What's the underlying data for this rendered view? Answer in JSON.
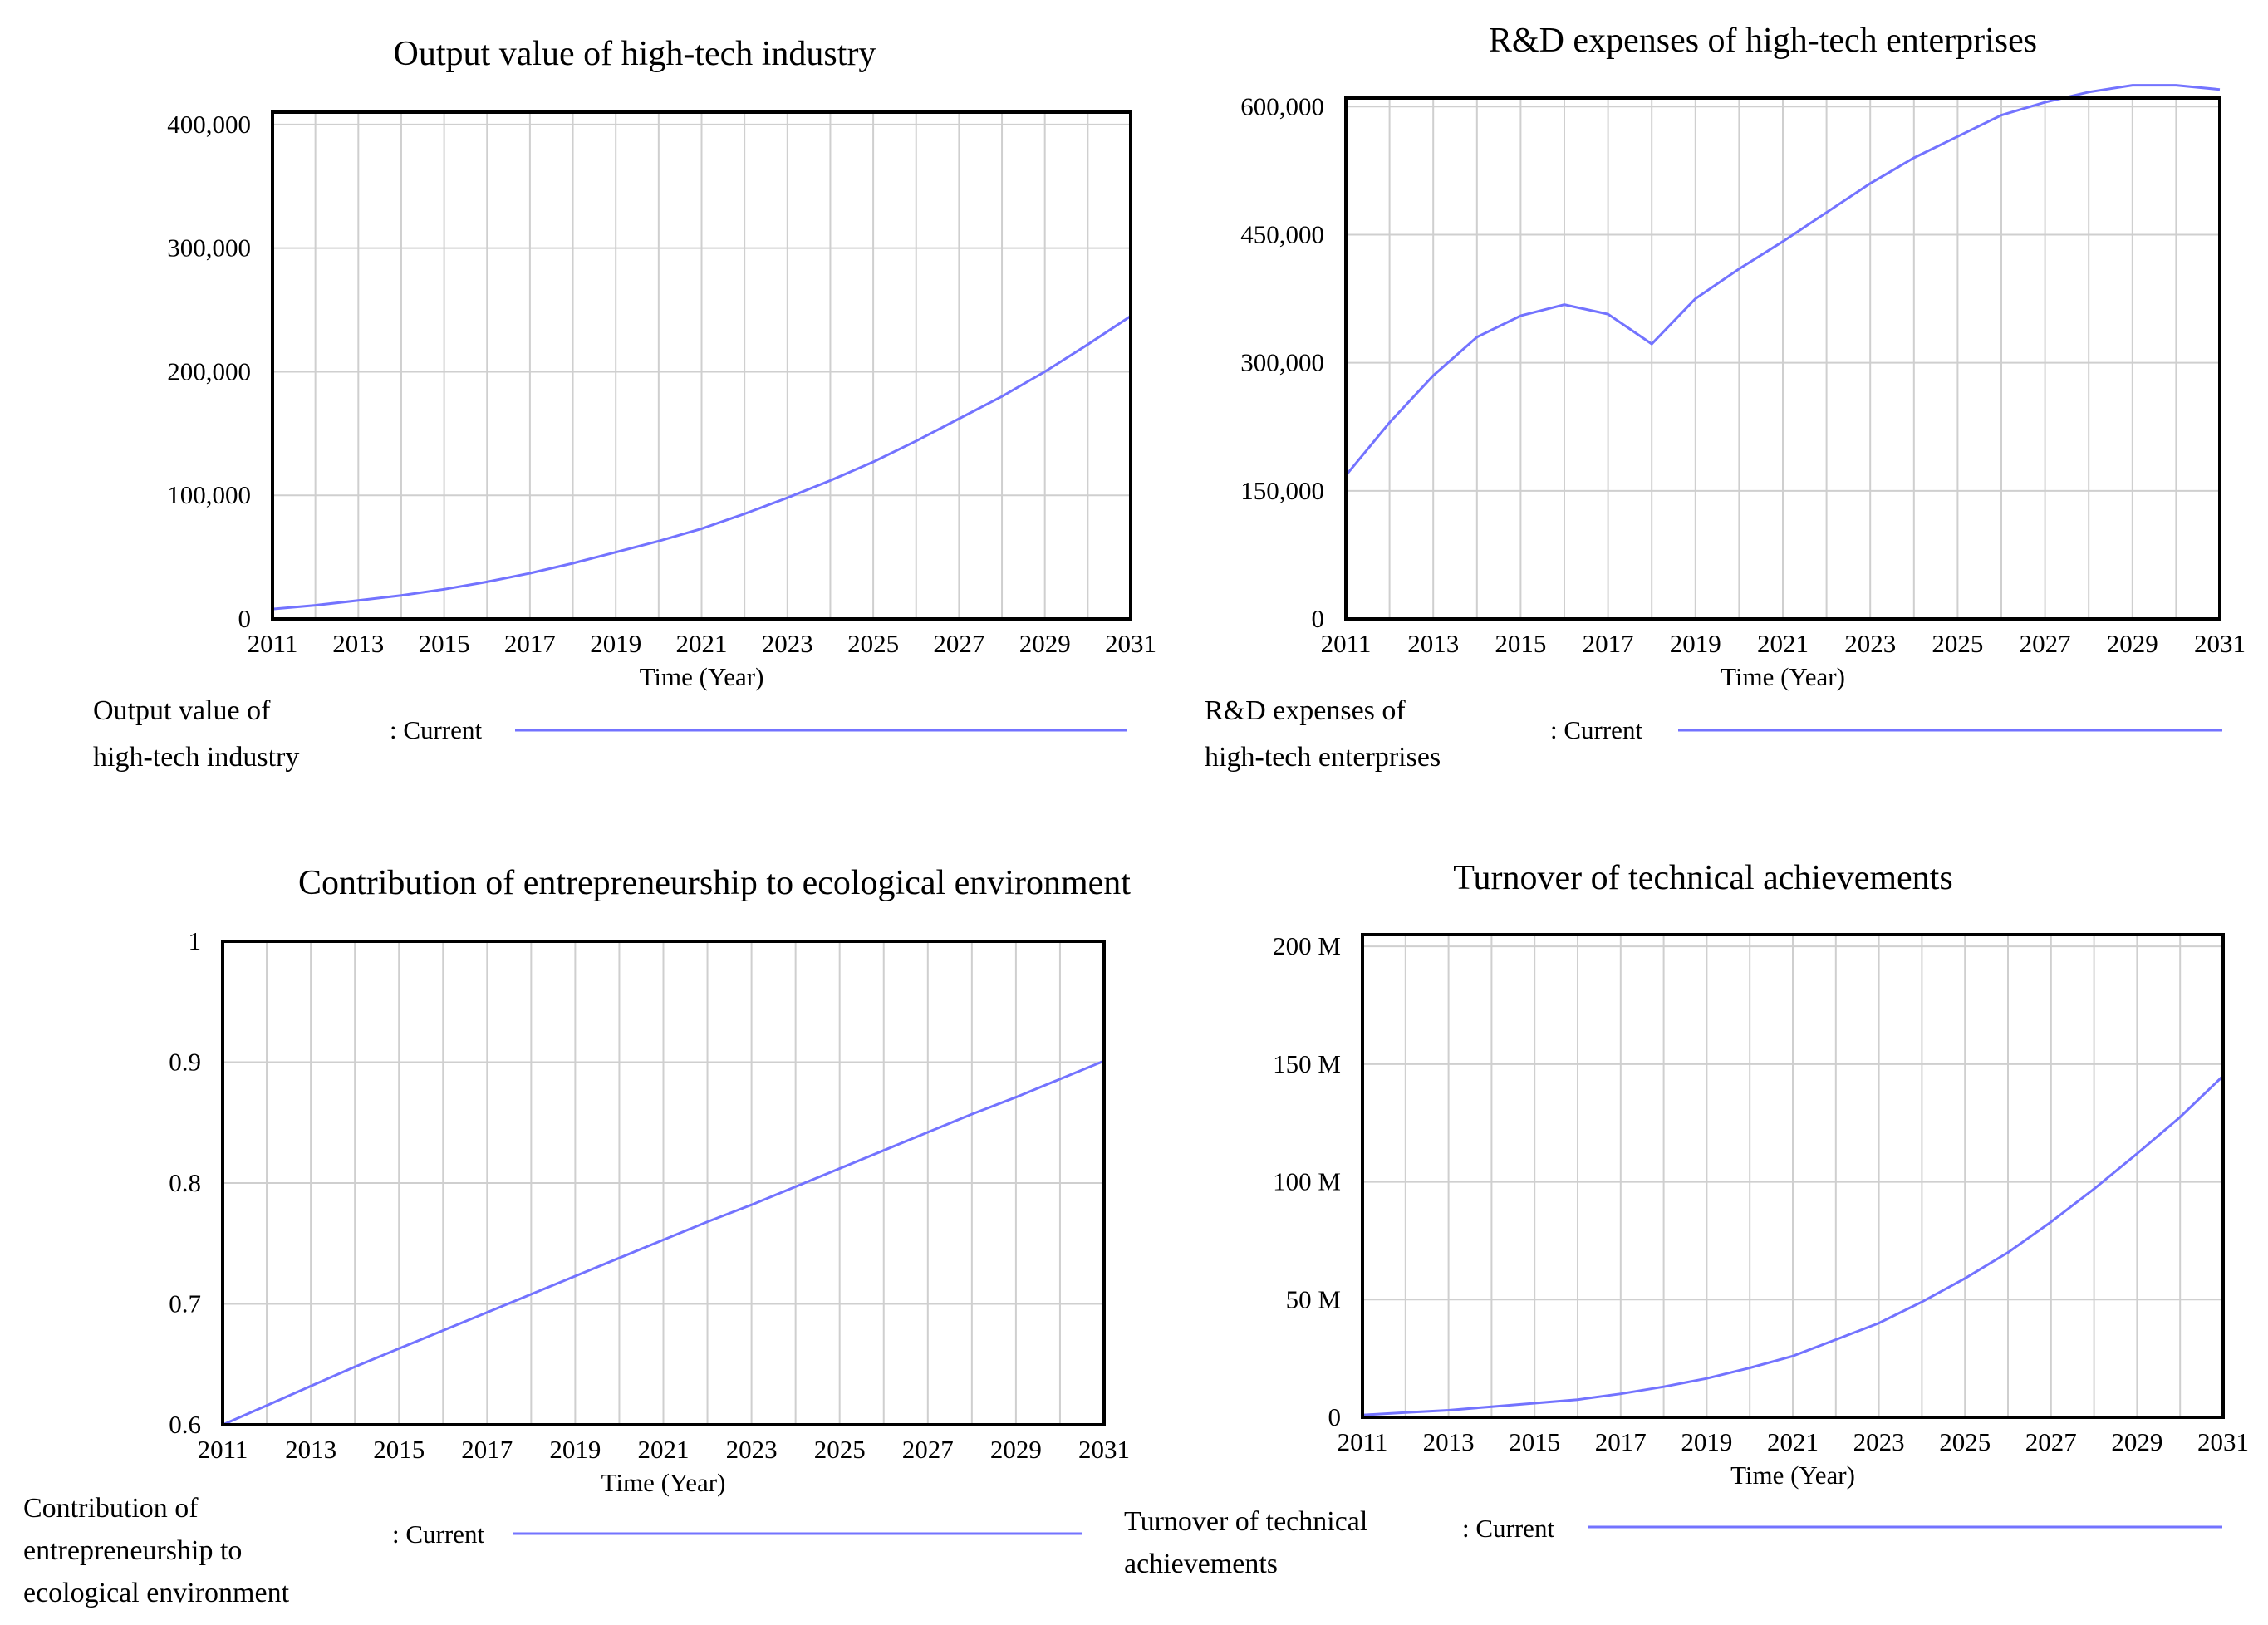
{
  "colors": {
    "series": "#7373ff",
    "grid": "#cfcfcf",
    "frame": "#000000",
    "background": "#ffffff"
  },
  "chart_data": [
    {
      "type": "line",
      "title": "Output value of high-tech industry",
      "xlabel": "Time (Year)",
      "ylabel": "",
      "x": [
        2011,
        2012,
        2013,
        2014,
        2015,
        2016,
        2017,
        2018,
        2019,
        2020,
        2021,
        2022,
        2023,
        2024,
        2025,
        2026,
        2027,
        2028,
        2029,
        2030,
        2031
      ],
      "xticks": [
        "2011",
        "2013",
        "2015",
        "2017",
        "2019",
        "2021",
        "2023",
        "2025",
        "2027",
        "2029",
        "2031"
      ],
      "ylim": [
        0,
        410000
      ],
      "yticks": [
        0,
        100000,
        200000,
        300000,
        400000
      ],
      "ytick_labels": [
        "0",
        "100,000",
        "200,000",
        "300,000",
        "400,000"
      ],
      "series": [
        {
          "name": "Current",
          "values": [
            8000,
            11000,
            15000,
            19000,
            24000,
            30000,
            37000,
            45000,
            54000,
            63000,
            73000,
            85000,
            98000,
            112000,
            127000,
            144000,
            162000,
            180000,
            200000,
            222000,
            245000
          ]
        }
      ],
      "legend": {
        "label_lines": [
          "Output value of",
          "high-tech industry"
        ],
        "sep": ": Current"
      }
    },
    {
      "type": "line",
      "title": "R&D expenses of high-tech enterprises",
      "xlabel": "Time (Year)",
      "ylabel": "",
      "x": [
        2011,
        2012,
        2013,
        2014,
        2015,
        2016,
        2017,
        2018,
        2019,
        2020,
        2021,
        2022,
        2023,
        2024,
        2025,
        2026,
        2027,
        2028,
        2029,
        2030,
        2031
      ],
      "xticks": [
        "2011",
        "2013",
        "2015",
        "2017",
        "2019",
        "2021",
        "2023",
        "2025",
        "2027",
        "2029",
        "2031"
      ],
      "ylim": [
        0,
        610000
      ],
      "yticks": [
        0,
        150000,
        300000,
        450000,
        600000
      ],
      "ytick_labels": [
        "0",
        "150,000",
        "300,000",
        "450,000",
        "600,000"
      ],
      "series": [
        {
          "name": "Current",
          "values": [
            168000,
            230000,
            285000,
            330000,
            355000,
            368000,
            357000,
            322000,
            375000,
            410000,
            442000,
            476000,
            510000,
            540000,
            565000,
            590000,
            605000,
            617000,
            625000,
            625000,
            620000
          ]
        }
      ],
      "legend": {
        "label_lines": [
          "R&D expenses of",
          "high-tech enterprises"
        ],
        "sep": ": Current"
      }
    },
    {
      "type": "line",
      "title": "Contribution of entrepreneurship to ecological environment",
      "xlabel": "Time (Year)",
      "ylabel": "",
      "x": [
        2011,
        2012,
        2013,
        2014,
        2015,
        2016,
        2017,
        2018,
        2019,
        2020,
        2021,
        2022,
        2023,
        2024,
        2025,
        2026,
        2027,
        2028,
        2029,
        2030,
        2031
      ],
      "xticks": [
        "2011",
        "2013",
        "2015",
        "2017",
        "2019",
        "2021",
        "2023",
        "2025",
        "2027",
        "2029",
        "2031"
      ],
      "ylim": [
        0.6,
        1.0
      ],
      "yticks": [
        0.6,
        0.7,
        0.8,
        0.9,
        1.0
      ],
      "ytick_labels": [
        "0.6",
        "0.7",
        "0.8",
        "0.9",
        "1"
      ],
      "series": [
        {
          "name": "Current",
          "values": [
            0.6,
            0.616,
            0.632,
            0.648,
            0.663,
            0.678,
            0.693,
            0.708,
            0.723,
            0.738,
            0.753,
            0.768,
            0.782,
            0.797,
            0.812,
            0.827,
            0.842,
            0.857,
            0.871,
            0.886,
            0.901
          ]
        }
      ],
      "legend": {
        "label_lines": [
          "Contribution of",
          "entrepreneurship to",
          "ecological environment"
        ],
        "sep": ": Current"
      }
    },
    {
      "type": "line",
      "title": "Turnover of technical achievements",
      "xlabel": "Time (Year)",
      "ylabel": "",
      "x": [
        2011,
        2012,
        2013,
        2014,
        2015,
        2016,
        2017,
        2018,
        2019,
        2020,
        2021,
        2022,
        2023,
        2024,
        2025,
        2026,
        2027,
        2028,
        2029,
        2030,
        2031
      ],
      "xticks": [
        "2011",
        "2013",
        "2015",
        "2017",
        "2019",
        "2021",
        "2023",
        "2025",
        "2027",
        "2029",
        "2031"
      ],
      "ylim": [
        0,
        205000000
      ],
      "yticks": [
        0,
        50000000,
        100000000,
        150000000,
        200000000
      ],
      "ytick_labels": [
        "0",
        "50 M",
        "100 M",
        "150 M",
        "200 M"
      ],
      "series": [
        {
          "name": "Current",
          "values": [
            1000000,
            2000000,
            3000000,
            4500000,
            6000000,
            7500000,
            10000000,
            13000000,
            16500000,
            21000000,
            26000000,
            33000000,
            40000000,
            49000000,
            59000000,
            70000000,
            83000000,
            97000000,
            112000000,
            127500000,
            145000000
          ]
        }
      ],
      "legend": {
        "label_lines": [
          "Turnover of technical",
          "achievements"
        ],
        "sep": ": Current"
      }
    }
  ]
}
